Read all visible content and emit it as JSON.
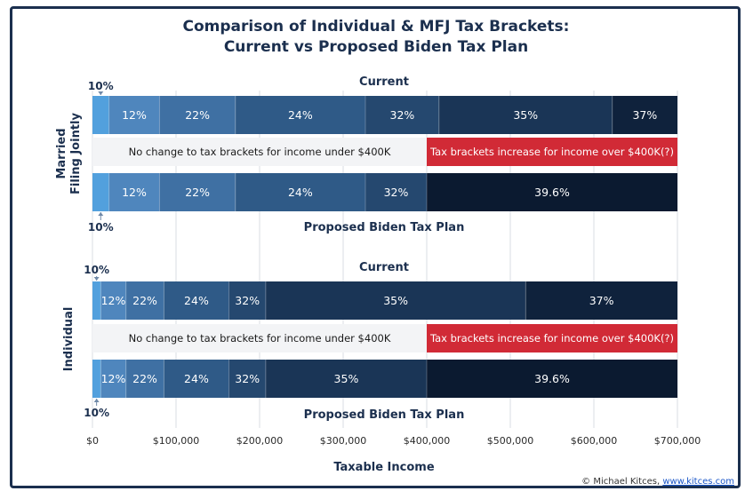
{
  "chart_data": {
    "type": "bar",
    "title_lines": [
      "Comparison of Individual & MFJ Tax Brackets:",
      "Current vs Proposed Biden Tax Plan"
    ],
    "xlabel": "Taxable Income",
    "xlim": [
      0,
      700000
    ],
    "x_ticks": [
      0,
      100000,
      200000,
      300000,
      400000,
      500000,
      600000,
      700000
    ],
    "x_tick_labels": [
      "$0",
      "$100,000",
      "$200,000",
      "$300,000",
      "$400,000",
      "$500,000",
      "$600,000",
      "$700,000"
    ],
    "groups": [
      {
        "name": "Married Filing Jointly",
        "ylabel_lines": [
          "Married",
          "Filing Jointly"
        ],
        "current_label": "Current",
        "proposed_label": "Proposed Biden Tax Plan",
        "ten_pct_label": "10%",
        "note_left": "No change to tax brackets for income under $400K",
        "note_right": "Tax brackets increase for income over $400K(?)",
        "current": [
          {
            "rate": "10%",
            "from": 0,
            "to": 19750,
            "label": ""
          },
          {
            "rate": "12%",
            "from": 19750,
            "to": 80250,
            "label": "12%"
          },
          {
            "rate": "22%",
            "from": 80250,
            "to": 171050,
            "label": "22%"
          },
          {
            "rate": "24%",
            "from": 171050,
            "to": 326600,
            "label": "24%"
          },
          {
            "rate": "32%",
            "from": 326600,
            "to": 414700,
            "label": "32%"
          },
          {
            "rate": "35%",
            "from": 414700,
            "to": 622050,
            "label": "35%"
          },
          {
            "rate": "37%",
            "from": 622050,
            "to": 700000,
            "label": "37%"
          }
        ],
        "proposed": [
          {
            "rate": "10%",
            "from": 0,
            "to": 19750,
            "label": ""
          },
          {
            "rate": "12%",
            "from": 19750,
            "to": 80250,
            "label": "12%"
          },
          {
            "rate": "22%",
            "from": 80250,
            "to": 171050,
            "label": "22%"
          },
          {
            "rate": "24%",
            "from": 171050,
            "to": 326600,
            "label": "24%"
          },
          {
            "rate": "32%",
            "from": 326600,
            "to": 400000,
            "label": "32%"
          },
          {
            "rate": "39.6%",
            "from": 400000,
            "to": 700000,
            "label": "39.6%"
          }
        ]
      },
      {
        "name": "Individual",
        "ylabel_lines": [
          "Individual"
        ],
        "current_label": "Current",
        "proposed_label": "Proposed Biden Tax Plan",
        "ten_pct_label": "10%",
        "note_left": "No change to tax brackets for income under $400K",
        "note_right": "Tax brackets increase for income over $400K(?)",
        "current": [
          {
            "rate": "10%",
            "from": 0,
            "to": 9875,
            "label": ""
          },
          {
            "rate": "12%",
            "from": 9875,
            "to": 40125,
            "label": "12%"
          },
          {
            "rate": "22%",
            "from": 40125,
            "to": 85525,
            "label": "22%"
          },
          {
            "rate": "24%",
            "from": 85525,
            "to": 163300,
            "label": "24%"
          },
          {
            "rate": "32%",
            "from": 163300,
            "to": 207350,
            "label": "32%"
          },
          {
            "rate": "35%",
            "from": 207350,
            "to": 518400,
            "label": "35%"
          },
          {
            "rate": "37%",
            "from": 518400,
            "to": 700000,
            "label": "37%"
          }
        ],
        "proposed": [
          {
            "rate": "10%",
            "from": 0,
            "to": 9875,
            "label": ""
          },
          {
            "rate": "12%",
            "from": 9875,
            "to": 40125,
            "label": "12%"
          },
          {
            "rate": "22%",
            "from": 40125,
            "to": 85525,
            "label": "22%"
          },
          {
            "rate": "24%",
            "from": 85525,
            "to": 163300,
            "label": "24%"
          },
          {
            "rate": "32%",
            "from": 163300,
            "to": 207350,
            "label": "32%"
          },
          {
            "rate": "35%",
            "from": 207350,
            "to": 400000,
            "label": "35%"
          },
          {
            "rate": "39.6%",
            "from": 400000,
            "to": 700000,
            "label": "39.6%"
          }
        ]
      }
    ],
    "credit_text": "© Michael Kitces, ",
    "credit_link": "www.kitces.com"
  },
  "colors": {
    "10%": "#52a0dd",
    "12%": "#4f86bd",
    "22%": "#3f70a3",
    "24%": "#2f5a87",
    "32%": "#25486f",
    "35%": "#1a3556",
    "37%": "#0f223c",
    "39.6%": "#0b1a30",
    "note_bg": "#f3f4f6",
    "note_red": "#d12a36",
    "grid": "#d9dde3",
    "navy": "#1b2f4e"
  }
}
